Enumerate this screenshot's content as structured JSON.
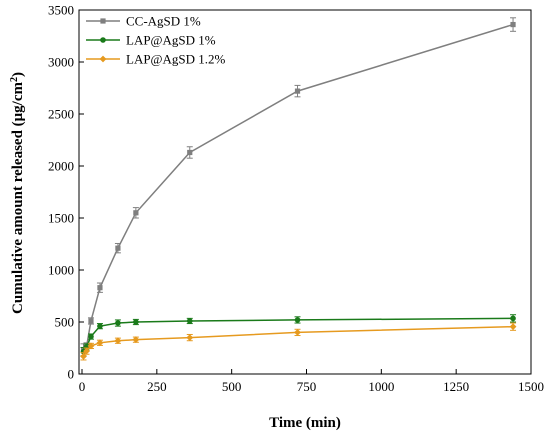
{
  "chart_data": {
    "type": "line",
    "xlabel": "Time (min)",
    "ylabel_main": "Cumulative amount released (μg/cm",
    "ylabel_sup": "2",
    "ylabel_tail": ")",
    "xlim": [
      -10,
      1500
    ],
    "ylim": [
      0,
      3500
    ],
    "xticks": [
      0,
      250,
      500,
      750,
      1000,
      1250,
      1500
    ],
    "yticks": [
      0,
      500,
      1000,
      1500,
      2000,
      2500,
      3000,
      3500
    ],
    "legend_position": "top-left",
    "series": [
      {
        "name": "CC-AgSD 1%",
        "color": "#7f7f7f",
        "marker": "square",
        "x": [
          5,
          15,
          30,
          60,
          120,
          180,
          360,
          720,
          1440
        ],
        "y": [
          230,
          260,
          510,
          830,
          1210,
          1550,
          2130,
          2720,
          3360
        ],
        "err": [
          60,
          40,
          30,
          45,
          45,
          50,
          55,
          55,
          65
        ]
      },
      {
        "name": "LAP@AgSD 1%",
        "color": "#1a7a1a",
        "marker": "circle",
        "x": [
          5,
          15,
          30,
          60,
          120,
          180,
          360,
          720,
          1440
        ],
        "y": [
          215,
          260,
          360,
          460,
          490,
          500,
          510,
          520,
          535
        ],
        "err": [
          40,
          30,
          25,
          25,
          30,
          25,
          25,
          30,
          35
        ]
      },
      {
        "name": "LAP@AgSD 1.2%",
        "color": "#e69a1f",
        "marker": "diamond",
        "x": [
          5,
          15,
          30,
          60,
          120,
          180,
          360,
          720,
          1440
        ],
        "y": [
          170,
          220,
          270,
          300,
          320,
          330,
          350,
          400,
          455
        ],
        "err": [
          35,
          30,
          25,
          25,
          25,
          25,
          30,
          30,
          35
        ]
      }
    ]
  }
}
